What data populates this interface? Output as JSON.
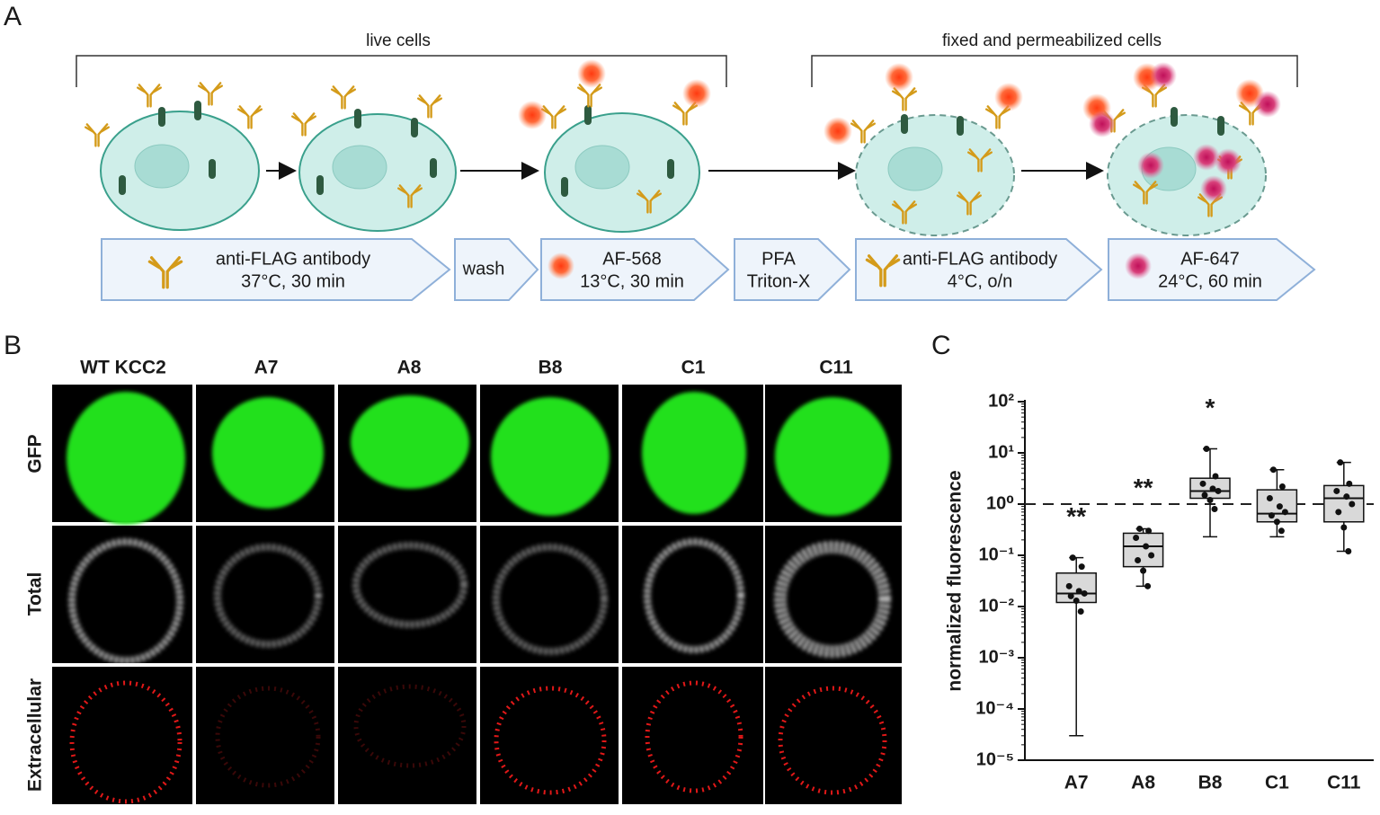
{
  "panel_labels": [
    "A",
    "B",
    "C"
  ],
  "panel_a": {
    "brackets": [
      "live cells",
      "fixed and permeabilized cells"
    ],
    "steps": [
      {
        "lines": [
          "anti-FLAG antibody",
          "37°C, 30 min"
        ]
      },
      {
        "lines": [
          "wash"
        ]
      },
      {
        "lines": [
          "AF-568",
          "13°C, 30 min"
        ]
      },
      {
        "lines": [
          "PFA",
          "Triton-X"
        ]
      },
      {
        "lines": [
          "anti-FLAG antibody",
          "4°C, o/n"
        ]
      },
      {
        "lines": [
          "AF-647",
          "24°C, 60 min"
        ]
      }
    ]
  },
  "panel_b": {
    "columns": [
      "WT KCC2",
      "A7",
      "A8",
      "B8",
      "C1",
      "C11"
    ],
    "rows": [
      "GFP",
      "Total",
      "Extracellular"
    ]
  },
  "chart_data": {
    "type": "box",
    "ylabel": "normalized fluorescence",
    "categories": [
      "A7",
      "A8",
      "B8",
      "C1",
      "C11"
    ],
    "color": "#d9d9d9",
    "log_scale": true,
    "ylim": [
      1e-05,
      100
    ],
    "yticks": [
      {
        "value": 100,
        "label": "10²"
      },
      {
        "value": 10,
        "label": "10¹"
      },
      {
        "value": 1,
        "label": "10⁰"
      },
      {
        "value": 0.1,
        "label": "10⁻¹"
      },
      {
        "value": 0.01,
        "label": "10⁻²"
      },
      {
        "value": 0.001,
        "label": "10⁻³"
      },
      {
        "value": 0.0001,
        "label": "10⁻⁴"
      },
      {
        "value": 1e-05,
        "label": "10⁻⁵"
      }
    ],
    "reference_line": 1,
    "boxes": [
      {
        "min": 3e-05,
        "q1": 0.012,
        "median": 0.018,
        "q3": 0.045,
        "max": 0.09,
        "points": [
          0.09,
          0.06,
          0.025,
          0.02,
          0.018,
          0.016,
          0.013,
          0.008
        ]
      },
      {
        "min": 0.025,
        "q1": 0.06,
        "median": 0.15,
        "q3": 0.27,
        "max": 0.33,
        "points": [
          0.33,
          0.3,
          0.22,
          0.15,
          0.1,
          0.08,
          0.05,
          0.025
        ]
      },
      {
        "min": 0.23,
        "q1": 1.3,
        "median": 1.8,
        "q3": 3.2,
        "max": 12,
        "points": [
          12,
          3.5,
          2.5,
          2,
          1.8,
          1.5,
          1.2,
          0.8
        ]
      },
      {
        "min": 0.23,
        "q1": 0.45,
        "median": 0.65,
        "q3": 1.9,
        "max": 4.7,
        "points": [
          4.7,
          2.2,
          1.3,
          0.9,
          0.7,
          0.6,
          0.45,
          0.3
        ]
      },
      {
        "min": 0.12,
        "q1": 0.45,
        "median": 1.3,
        "q3": 2.3,
        "max": 6.5,
        "points": [
          6.5,
          2.5,
          1.8,
          1.4,
          1.0,
          0.7,
          0.35,
          0.12
        ]
      }
    ],
    "annotations": [
      {
        "category": "A7",
        "text": "**"
      },
      {
        "category": "A8",
        "text": "**"
      },
      {
        "category": "B8",
        "text": "*"
      }
    ]
  }
}
